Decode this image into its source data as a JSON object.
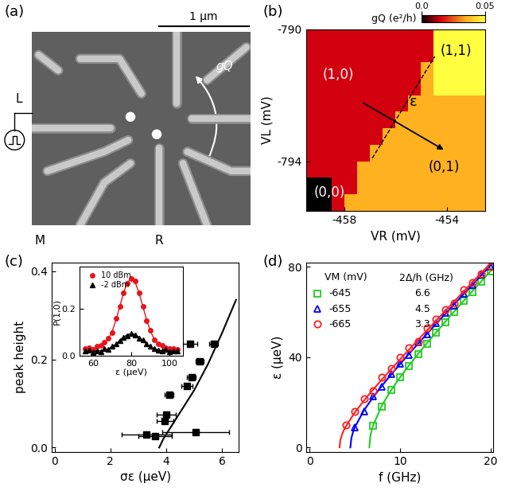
{
  "chart_data": [
    {
      "panel": "(a)",
      "type": "micrograph",
      "scale_bar": "1 µm",
      "labels": [
        "L",
        "M",
        "R",
        "gQ"
      ]
    },
    {
      "panel": "(b)",
      "type": "heatmap",
      "xlabel": "VR (mV)",
      "ylabel": "VL (mV)",
      "xlim": [
        -459.5,
        -452.5
      ],
      "ylim": [
        -795.5,
        -790
      ],
      "xticks": [
        -458,
        -454
      ],
      "yticks": [
        -790,
        -794
      ],
      "x_edges": [
        -459.5,
        -459.0,
        -458.5,
        -458.0,
        -457.5,
        -457.0,
        -456.5,
        -456.0,
        -455.5,
        -455.0,
        -454.5,
        -454.0,
        -453.5,
        -453.0,
        -452.5
      ],
      "y_edges": [
        -790.0,
        -790.5,
        -791.0,
        -791.5,
        -792.0,
        -792.5,
        -793.0,
        -793.5,
        -794.0,
        -794.5,
        -795.0,
        -795.5
      ],
      "cells": [
        [
          0.015,
          0.015,
          0.015,
          0.015,
          0.015,
          0.015,
          0.015,
          0.015,
          0.015,
          0.015,
          0.05,
          0.05,
          0.05,
          0.05
        ],
        [
          0.015,
          0.015,
          0.015,
          0.015,
          0.015,
          0.015,
          0.015,
          0.015,
          0.015,
          0.015,
          0.05,
          0.05,
          0.05,
          0.05
        ],
        [
          0.015,
          0.015,
          0.015,
          0.015,
          0.015,
          0.015,
          0.015,
          0.015,
          0.015,
          0.035,
          0.05,
          0.05,
          0.05,
          0.05
        ],
        [
          0.015,
          0.015,
          0.015,
          0.015,
          0.015,
          0.015,
          0.015,
          0.015,
          0.015,
          0.035,
          0.05,
          0.05,
          0.05,
          0.05
        ],
        [
          0.015,
          0.015,
          0.015,
          0.015,
          0.015,
          0.015,
          0.015,
          0.015,
          0.035,
          0.035,
          0.035,
          0.035,
          0.035,
          0.035
        ],
        [
          0.015,
          0.015,
          0.015,
          0.015,
          0.015,
          0.015,
          0.015,
          0.035,
          0.035,
          0.035,
          0.035,
          0.035,
          0.035,
          0.035
        ],
        [
          0.015,
          0.015,
          0.015,
          0.015,
          0.015,
          0.015,
          0.035,
          0.035,
          0.035,
          0.035,
          0.035,
          0.035,
          0.035,
          0.035
        ],
        [
          0.015,
          0.015,
          0.015,
          0.015,
          0.015,
          0.035,
          0.035,
          0.035,
          0.035,
          0.035,
          0.035,
          0.035,
          0.035,
          0.035
        ],
        [
          0.015,
          0.015,
          0.015,
          0.015,
          0.035,
          0.035,
          0.035,
          0.035,
          0.035,
          0.035,
          0.035,
          0.035,
          0.035,
          0.035
        ],
        [
          0.0,
          0.0,
          0.015,
          0.015,
          0.035,
          0.035,
          0.035,
          0.035,
          0.035,
          0.035,
          0.035,
          0.035,
          0.035,
          0.035
        ],
        [
          0.0,
          0.0,
          0.015,
          0.035,
          0.035,
          0.035,
          0.035,
          0.035,
          0.035,
          0.035,
          0.035,
          0.035,
          0.035,
          0.035
        ]
      ],
      "colorbar": {
        "label": "gQ (e²/h)",
        "range": [
          0.0,
          0.05
        ],
        "ticks": [
          0.0,
          0.05
        ]
      },
      "annotations": [
        "(1,0)",
        "(0,0)",
        "(1,1)",
        "(0,1)",
        "ε"
      ]
    },
    {
      "panel": "(c)",
      "type": "scatter",
      "xlabel": "σε (µeV)",
      "ylabel": "peak height",
      "xlim": [
        -0.1,
        6.6
      ],
      "ylim": [
        -0.01,
        0.42
      ],
      "xticks": [
        0,
        2,
        4,
        6
      ],
      "yticks": [
        0.0,
        0.2,
        0.4
      ],
      "marker": "square",
      "color": "#000000",
      "x": [
        5.7,
        4.85,
        5.2,
        4.9,
        4.75,
        4.1,
        4.0,
        3.95,
        3.3,
        3.6,
        5.05
      ],
      "values": [
        0.235,
        0.235,
        0.195,
        0.16,
        0.14,
        0.12,
        0.075,
        0.06,
        0.03,
        0.025,
        0.035
      ],
      "x_error": [
        0.15,
        0.25,
        0.15,
        0.15,
        0.2,
        0.15,
        0.35,
        0.3,
        0.9,
        0.6,
        1.2
      ],
      "curve": {
        "x": [
          3.75,
          3.9,
          4.2,
          4.6,
          5.0,
          5.5,
          6.0,
          6.5
        ],
        "values": [
          0.0,
          0.02,
          0.05,
          0.09,
          0.13,
          0.19,
          0.26,
          0.335
        ]
      },
      "inset": {
        "type": "scatter",
        "xlabel": "ε (µeV)",
        "ylabel": "P(1,0)",
        "xlim": [
          53,
          107
        ],
        "ylim": [
          0,
          0.38
        ],
        "xticks": [
          60,
          80,
          100
        ],
        "yticks": [
          0.0,
          0.2
        ],
        "legend": "upper left",
        "x": [
          56,
          58,
          60,
          62,
          64,
          66,
          68,
          70,
          72,
          74,
          76,
          78,
          80,
          82,
          84,
          86,
          88,
          90,
          92,
          94,
          96,
          98,
          100,
          102,
          104
        ],
        "series": [
          {
            "name": "10 dBm",
            "color": "#e8141b",
            "marker": "circle",
            "values": [
              0.03,
              0.035,
              0.028,
              0.04,
              0.045,
              0.06,
              0.075,
              0.1,
              0.16,
              0.21,
              0.27,
              0.31,
              0.33,
              0.32,
              0.27,
              0.21,
              0.15,
              0.11,
              0.07,
              0.05,
              0.045,
              0.035,
              0.03,
              0.032,
              0.028
            ],
            "fit": [
              0.03,
              0.03,
              0.031,
              0.033,
              0.039,
              0.05,
              0.071,
              0.105,
              0.153,
              0.212,
              0.27,
              0.314,
              0.33,
              0.314,
              0.27,
              0.212,
              0.153,
              0.105,
              0.071,
              0.05,
              0.039,
              0.033,
              0.031,
              0.03,
              0.03
            ]
          },
          {
            "name": "-2 dBm",
            "color": "#000000",
            "marker": "triangle",
            "values": [
              0.02,
              0.025,
              0.015,
              0.022,
              0.018,
              0.03,
              0.028,
              0.04,
              0.05,
              0.065,
              0.08,
              0.085,
              0.095,
              0.09,
              0.075,
              0.07,
              0.05,
              0.04,
              0.03,
              0.025,
              0.02,
              0.028,
              0.018,
              0.022,
              0.02
            ],
            "fit": [
              0.02,
              0.02,
              0.02,
              0.021,
              0.022,
              0.025,
              0.03,
              0.039,
              0.051,
              0.066,
              0.08,
              0.091,
              0.095,
              0.091,
              0.08,
              0.066,
              0.051,
              0.039,
              0.03,
              0.025,
              0.022,
              0.021,
              0.02,
              0.02,
              0.02
            ]
          }
        ]
      }
    },
    {
      "panel": "(d)",
      "type": "scatter",
      "xlabel": "f (GHz)",
      "ylabel": "ε (µeV)",
      "xlim": [
        -0.4,
        20.3
      ],
      "ylim": [
        -2,
        82
      ],
      "xticks": [
        0,
        10,
        20
      ],
      "yticks": [
        0,
        40,
        80
      ],
      "table_header": [
        "VM (mV)",
        "2Δ/h (GHz)"
      ],
      "series": [
        {
          "name": "-645",
          "two_delta": 6.6,
          "color": "#22cc22",
          "marker": "open_square",
          "x": [
            7,
            8,
            9,
            10,
            11,
            12,
            13,
            14,
            15,
            16,
            17,
            18,
            19,
            20
          ],
          "values": [
            9.5,
            18,
            25.5,
            31,
            36,
            41.5,
            46,
            51,
            55.5,
            60,
            65,
            69,
            73.5,
            78
          ],
          "fit_x": [
            6.6,
            6.7,
            6.9,
            7,
            8,
            9,
            10,
            11,
            12,
            13,
            14,
            15,
            16,
            17,
            18,
            19,
            20
          ],
          "fit": [
            0,
            4.77,
            8.32,
            9.65,
            18.7,
            25.31,
            31.07,
            36.4,
            41.45,
            46.32,
            51.06,
            55.71,
            60.28,
            64.79,
            69.26,
            73.69,
            78.08
          ]
        },
        {
          "name": "-655",
          "two_delta": 4.5,
          "color": "#0000ff",
          "marker": "open_triangle",
          "x": [
            5,
            6,
            7,
            8,
            9,
            10,
            11,
            12,
            13,
            14,
            15,
            16,
            17,
            18,
            19,
            20
          ],
          "values": [
            9,
            16,
            22.5,
            27,
            32.5,
            37,
            41,
            46.5,
            50,
            55,
            59.5,
            63,
            68,
            72,
            76.5,
            80
          ],
          "fit_x": [
            4.5,
            4.6,
            4.8,
            5,
            6,
            7,
            8,
            9,
            10,
            11,
            12,
            13,
            14,
            15,
            16,
            17,
            18,
            19,
            20
          ],
          "fit": [
            0,
            3.94,
            6.91,
            9.01,
            16.41,
            22.17,
            27.36,
            32.23,
            36.93,
            41.51,
            46.01,
            50.44,
            54.83,
            59.18,
            63.5,
            67.8,
            72.08,
            76.34,
            80.59
          ]
        },
        {
          "name": "-665",
          "two_delta": 3.3,
          "color": "#ff2020",
          "marker": "open_circle",
          "x": [
            4,
            5,
            6,
            7,
            8,
            9,
            10,
            11,
            12,
            13,
            14,
            15,
            16,
            17,
            18,
            19,
            20
          ],
          "values": [
            10,
            16,
            21.5,
            25,
            31,
            35,
            40,
            44,
            47,
            53,
            57,
            61,
            64,
            70,
            73,
            77,
            80
          ],
          "fit_x": [
            3.3,
            3.4,
            3.6,
            3.8,
            4,
            5,
            6,
            7,
            8,
            9,
            10,
            11,
            12,
            13,
            14,
            15,
            16,
            17,
            18,
            19,
            20
          ],
          "fit": [
            0,
            3.38,
            5.95,
            7.79,
            9.35,
            15.53,
            20.72,
            25.53,
            30.14,
            34.63,
            39.04,
            43.4,
            47.72,
            52.0,
            56.27,
            60.52,
            64.75,
            68.97,
            73.18,
            77.38,
            81.58
          ]
        }
      ]
    }
  ]
}
